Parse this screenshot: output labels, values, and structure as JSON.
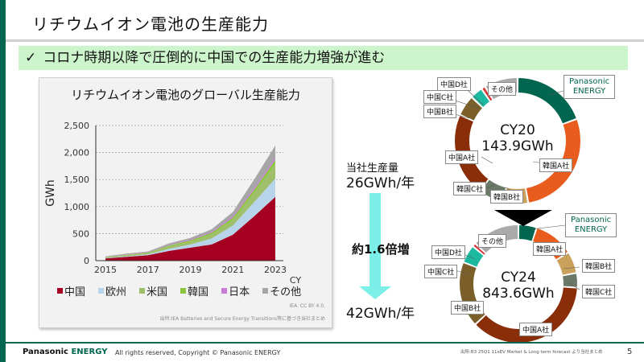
{
  "slide": {
    "title": "リチウムイオン電池の生産能力",
    "banner": {
      "check": "✓",
      "text": "コロナ時期以降で圧倒的に中国での生産能力増強が進む"
    },
    "page_number": "5"
  },
  "colors": {
    "brand_green": "#00664f",
    "banner_bg": "#ccf5cc",
    "arrow": "#7cf0e8"
  },
  "area_chart": {
    "title": "リチウムイオン電池のグローバル生産能力",
    "ylabel": "GWh",
    "xlabel": "CY",
    "yticks": [
      "0",
      "500",
      "1,000",
      "1,500",
      "2,000",
      "2,500"
    ],
    "xticks": [
      "2015",
      "2017",
      "2019",
      "2021",
      "2023"
    ],
    "legend": [
      {
        "label": "中国",
        "color": "#a50021"
      },
      {
        "label": "欧州",
        "color": "#b8d4ea"
      },
      {
        "label": "米国",
        "color": "#9fbf6a"
      },
      {
        "label": "韓国",
        "color": "#8cc63f"
      },
      {
        "label": "日本",
        "color": "#c77dd8"
      },
      {
        "label": "その他",
        "color": "#a6a6a6"
      }
    ],
    "credit": "IEA. CC BY 4.0.",
    "source": "出所:IEA Batteries and Secure Energy Transitions等に基づき当社まとめ"
  },
  "chart_data": [
    {
      "type": "area",
      "title": "リチウムイオン電池のグローバル生産能力",
      "xlabel": "CY",
      "ylabel": "GWh",
      "ylim": [
        0,
        2500
      ],
      "grid": true,
      "legend_position": "bottom",
      "x": [
        2015,
        2016,
        2017,
        2018,
        2019,
        2020,
        2021,
        2022,
        2023
      ],
      "series": [
        {
          "name": "中国",
          "values": [
            40,
            70,
            100,
            180,
            240,
            300,
            480,
            820,
            1180
          ]
        },
        {
          "name": "欧州",
          "values": [
            8,
            12,
            18,
            40,
            60,
            110,
            170,
            260,
            340
          ]
        },
        {
          "name": "米国",
          "values": [
            15,
            20,
            25,
            40,
            50,
            70,
            100,
            170,
            260
          ]
        },
        {
          "name": "韓国",
          "values": [
            5,
            8,
            10,
            20,
            25,
            35,
            45,
            60,
            80
          ]
        },
        {
          "name": "日本",
          "values": [
            4,
            6,
            7,
            12,
            15,
            20,
            25,
            35,
            40
          ]
        },
        {
          "name": "その他",
          "values": [
            8,
            14,
            10,
            28,
            30,
            45,
            80,
            155,
            230
          ]
        }
      ]
    },
    {
      "type": "pie",
      "title": "CY20",
      "total_label": "143.9GWh",
      "categories": [
        "Panasonic ENERGY",
        "韓国A社",
        "韓国B社",
        "韓国C社",
        "中国A社",
        "中国B社",
        "中国C社",
        "中国D社",
        "その他"
      ],
      "values": [
        18,
        26,
        6,
        6,
        20,
        5,
        3,
        1,
        8
      ]
    },
    {
      "type": "pie",
      "title": "CY24",
      "total_label": "843.6GWh",
      "categories": [
        "Panasonic ENERGY",
        "韓国A社",
        "韓国B社",
        "韓国C社",
        "中国A社",
        "中国B社",
        "中国C社",
        "中国D社",
        "その他"
      ],
      "values": [
        5,
        11,
        6,
        4,
        37,
        18,
        5,
        1,
        13
      ]
    }
  ],
  "donuts": {
    "cy20": {
      "year": "CY20",
      "total": "143.9GWh",
      "labels": {
        "panasonic": "Panasonic\nENERGY",
        "korea_a": "韓国A社",
        "korea_b": "韓国B社",
        "korea_c": "韓国C社",
        "china_a": "中国A社",
        "china_b": "中国B社",
        "china_c": "中国C社",
        "china_d": "中国D社",
        "other": "その他"
      }
    },
    "cy24": {
      "year": "CY24",
      "total": "843.6GWh",
      "labels": {
        "panasonic": "Panasonic\nENERGY",
        "korea_a": "韓国A社",
        "korea_b": "韓国B社",
        "korea_c": "韓国C社",
        "china_a": "中国A社",
        "china_b": "中国B社",
        "china_c": "中国C社",
        "china_d": "中国D社",
        "other": "その他"
      }
    },
    "segment_colors": [
      "#00664f",
      "#e85c1e",
      "#c9a15a",
      "#6b7a68",
      "#8a2e0a",
      "#7a5f2a",
      "#1cb8a0",
      "#d63a3a",
      "#aaaaaa"
    ]
  },
  "own_production": {
    "top_label": "当社生産量",
    "top_value": "26GWh/年",
    "growth": "約1.6倍増",
    "bottom_value": "42GWh/年"
  },
  "footer": {
    "logo_panasonic": "Panasonic",
    "logo_energy": "ENERGY",
    "copyright": "All rights reserved, Copyright © Panasonic ENERGY",
    "source": "出所:B3 25Q1 11xEV Market & Long term forecast より当社まとめ"
  }
}
